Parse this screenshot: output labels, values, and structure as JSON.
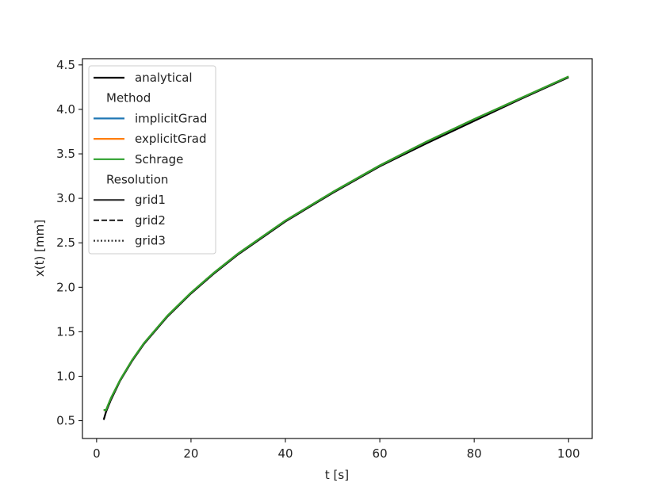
{
  "chart_data": {
    "type": "line",
    "xlabel": "t [s]",
    "ylabel": "x(t) [mm]",
    "xlim": [
      -3,
      105
    ],
    "ylim": [
      0.3,
      4.57
    ],
    "xticks": [
      0,
      20,
      40,
      60,
      80,
      100
    ],
    "yticks": [
      0.5,
      1.0,
      1.5,
      2.0,
      2.5,
      3.0,
      3.5,
      4.0,
      4.5
    ],
    "xtick_labels": [
      "0",
      "20",
      "40",
      "60",
      "80",
      "100"
    ],
    "ytick_labels": [
      "0.5",
      "1.0",
      "1.5",
      "2.0",
      "2.5",
      "3.0",
      "3.5",
      "4.0",
      "4.5"
    ],
    "grid": false,
    "legend_position": "top-left",
    "x": [
      1.5,
      2,
      3,
      5,
      7.5,
      10,
      15,
      20,
      25,
      30,
      40,
      50,
      60,
      70,
      80,
      90,
      100
    ],
    "series": [
      {
        "name": "analytical",
        "color": "#000000",
        "style": "solid",
        "width": 2.2,
        "values": [
          0.51,
          0.6,
          0.73,
          0.95,
          1.17,
          1.36,
          1.67,
          1.93,
          2.16,
          2.37,
          2.74,
          3.06,
          3.36,
          3.62,
          3.87,
          4.12,
          4.36
        ]
      },
      {
        "name": "implicitGrad",
        "color": "#1f77b4",
        "style": "solid",
        "width": 2.2,
        "values": [
          0.62,
          0.62,
          0.75,
          0.96,
          1.18,
          1.37,
          1.68,
          1.94,
          2.17,
          2.38,
          2.75,
          3.07,
          3.37,
          3.64,
          3.89,
          4.13,
          4.37
        ]
      },
      {
        "name": "explicitGrad",
        "color": "#ff7f0e",
        "style": "solid",
        "width": 2.2,
        "values": [
          0.62,
          0.62,
          0.75,
          0.96,
          1.18,
          1.37,
          1.68,
          1.94,
          2.17,
          2.38,
          2.75,
          3.07,
          3.37,
          3.64,
          3.89,
          4.13,
          4.37
        ]
      },
      {
        "name": "Schrage",
        "color": "#2ca02c",
        "style": "solid",
        "width": 2.2,
        "values": [
          0.62,
          0.62,
          0.75,
          0.96,
          1.18,
          1.37,
          1.68,
          1.94,
          2.17,
          2.38,
          2.75,
          3.07,
          3.37,
          3.64,
          3.89,
          4.13,
          4.37
        ]
      }
    ],
    "legend": [
      {
        "label": "analytical",
        "color": "#000000",
        "style": "solid",
        "kind": "line"
      },
      {
        "label": "Method",
        "kind": "header"
      },
      {
        "label": "implicitGrad",
        "color": "#1f77b4",
        "style": "solid",
        "kind": "line"
      },
      {
        "label": "explicitGrad",
        "color": "#ff7f0e",
        "style": "solid",
        "kind": "line"
      },
      {
        "label": "Schrage",
        "color": "#2ca02c",
        "style": "solid",
        "kind": "line"
      },
      {
        "label": "Resolution",
        "kind": "header"
      },
      {
        "label": "grid1",
        "color": "#333333",
        "style": "solid",
        "kind": "line"
      },
      {
        "label": "grid2",
        "color": "#333333",
        "style": "dashed",
        "kind": "line"
      },
      {
        "label": "grid3",
        "color": "#333333",
        "style": "dotted",
        "kind": "line"
      }
    ]
  }
}
